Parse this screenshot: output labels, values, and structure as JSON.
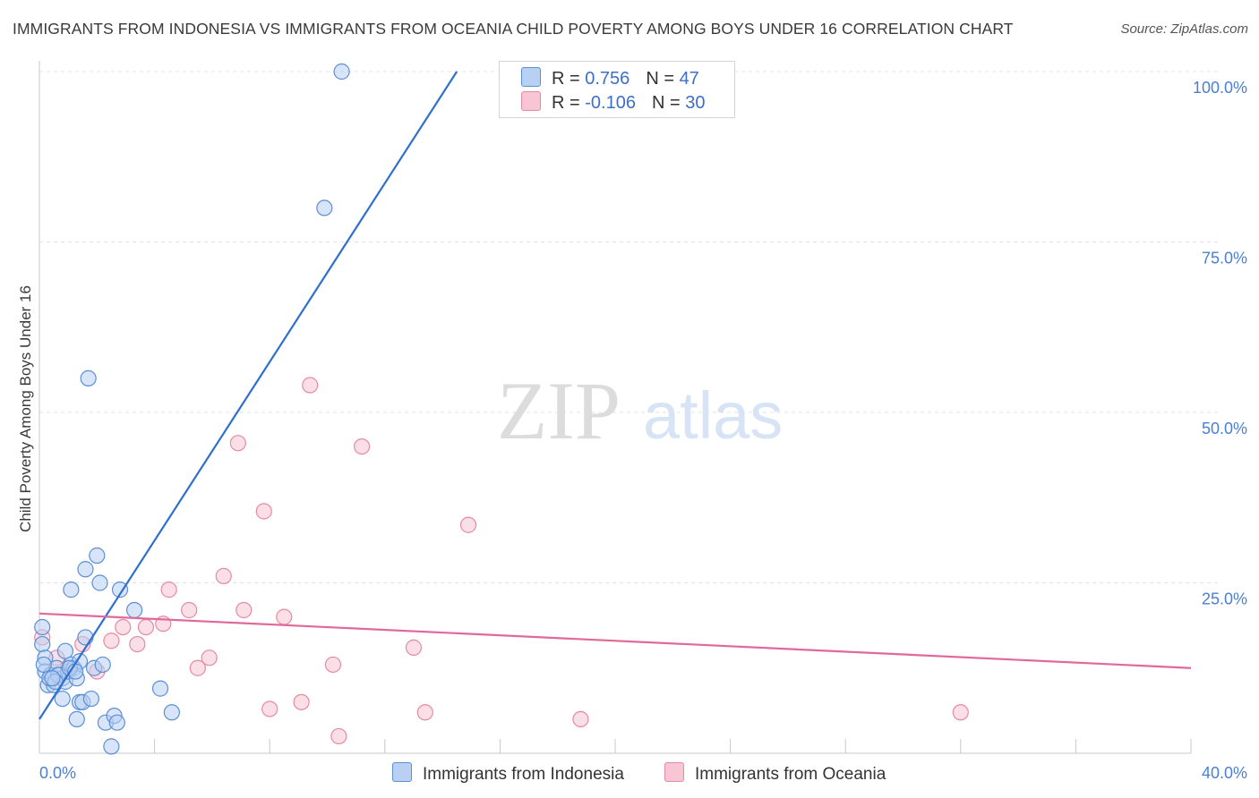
{
  "title": "IMMIGRANTS FROM INDONESIA VS IMMIGRANTS FROM OCEANIA CHILD POVERTY AMONG BOYS UNDER 16 CORRELATION CHART",
  "source": "Source: ZipAtlas.com",
  "watermark": {
    "zip": "ZIP",
    "atlas": "atlas"
  },
  "legend": {
    "r_label": "R =",
    "n_label": "N =",
    "rows": [
      {
        "r": "0.756",
        "n": "47"
      },
      {
        "r": "-0.106",
        "n": "30"
      }
    ]
  },
  "colors": {
    "blue_fill": "#b8d0f2",
    "blue_stroke": "#5b8fd6",
    "blue_line": "#2f6fcf",
    "pink_fill": "#f7c5d4",
    "pink_stroke": "#e58aa6",
    "pink_line": "#e0699a",
    "grid": "#dde3ec",
    "tick": "#4a7fd4"
  },
  "chart_data": {
    "type": "scatter",
    "title": "IMMIGRANTS FROM INDONESIA VS IMMIGRANTS FROM OCEANIA CHILD POVERTY AMONG BOYS UNDER 16 CORRELATION CHART",
    "xlabel": "",
    "ylabel": "Child Poverty Among Boys Under 16",
    "xlim": [
      0,
      40
    ],
    "ylim": [
      0,
      100
    ],
    "x_ticks": [
      {
        "value": 0,
        "label": "0.0%"
      },
      {
        "value": 40,
        "label": "40.0%"
      }
    ],
    "y_ticks": [
      {
        "value": 25,
        "label": "25.0%"
      },
      {
        "value": 50,
        "label": "50.0%"
      },
      {
        "value": 75,
        "label": "75.0%"
      },
      {
        "value": 100,
        "label": "100.0%"
      }
    ],
    "series": [
      {
        "name": "Immigrants from Indonesia",
        "color": "blue",
        "points": [
          [
            0.1,
            18.5
          ],
          [
            0.1,
            16.0
          ],
          [
            0.2,
            14.0
          ],
          [
            0.2,
            12.0
          ],
          [
            0.3,
            10.0
          ],
          [
            0.4,
            11.5
          ],
          [
            0.5,
            10.0
          ],
          [
            0.6,
            12.5
          ],
          [
            0.7,
            11.5
          ],
          [
            0.8,
            11.0
          ],
          [
            0.8,
            8.0
          ],
          [
            0.9,
            15.0
          ],
          [
            0.9,
            10.5
          ],
          [
            1.0,
            12.0
          ],
          [
            1.1,
            13.0
          ],
          [
            1.1,
            24.0
          ],
          [
            1.2,
            12.5
          ],
          [
            1.3,
            11.0
          ],
          [
            1.3,
            5.0
          ],
          [
            1.4,
            13.5
          ],
          [
            1.4,
            7.5
          ],
          [
            1.5,
            7.5
          ],
          [
            1.6,
            27.0
          ],
          [
            1.6,
            17.0
          ],
          [
            1.8,
            8.0
          ],
          [
            1.9,
            12.5
          ],
          [
            2.0,
            29.0
          ],
          [
            2.1,
            25.0
          ],
          [
            2.2,
            13.0
          ],
          [
            2.3,
            4.5
          ],
          [
            2.5,
            1.0
          ],
          [
            2.6,
            5.5
          ],
          [
            2.7,
            4.5
          ],
          [
            2.8,
            24.0
          ],
          [
            3.3,
            21.0
          ],
          [
            4.2,
            9.5
          ],
          [
            4.6,
            6.0
          ],
          [
            1.7,
            55.0
          ],
          [
            9.9,
            80.0
          ],
          [
            10.5,
            100.0
          ],
          [
            0.35,
            11.0
          ],
          [
            0.65,
            11.5
          ],
          [
            1.05,
            12.5
          ],
          [
            0.55,
            10.5
          ],
          [
            0.15,
            13.0
          ],
          [
            1.25,
            12.0
          ],
          [
            0.45,
            11.0
          ]
        ],
        "trend": {
          "x": [
            0,
            14.5
          ],
          "y": [
            5.0,
            100.0
          ]
        }
      },
      {
        "name": "Immigrants from Oceania",
        "color": "pink",
        "points": [
          [
            0.1,
            17.0
          ],
          [
            0.6,
            14.0
          ],
          [
            1.0,
            12.5
          ],
          [
            1.5,
            16.0
          ],
          [
            2.0,
            12.0
          ],
          [
            2.5,
            16.5
          ],
          [
            2.9,
            18.5
          ],
          [
            3.4,
            16.0
          ],
          [
            3.7,
            18.5
          ],
          [
            4.3,
            19.0
          ],
          [
            4.5,
            24.0
          ],
          [
            5.2,
            21.0
          ],
          [
            5.5,
            12.5
          ],
          [
            5.9,
            14.0
          ],
          [
            6.4,
            26.0
          ],
          [
            6.9,
            45.5
          ],
          [
            7.1,
            21.0
          ],
          [
            7.8,
            35.5
          ],
          [
            8.0,
            6.5
          ],
          [
            8.5,
            20.0
          ],
          [
            9.1,
            7.5
          ],
          [
            9.4,
            54.0
          ],
          [
            10.2,
            13.0
          ],
          [
            10.4,
            2.5
          ],
          [
            11.2,
            45.0
          ],
          [
            13.0,
            15.5
          ],
          [
            13.4,
            6.0
          ],
          [
            14.9,
            33.5
          ],
          [
            18.8,
            5.0
          ],
          [
            32.0,
            6.0
          ]
        ],
        "trend": {
          "x": [
            0,
            40
          ],
          "y": [
            20.5,
            12.5
          ]
        }
      }
    ]
  },
  "bottom_legend": [
    "Immigrants from Indonesia",
    "Immigrants from Oceania"
  ]
}
